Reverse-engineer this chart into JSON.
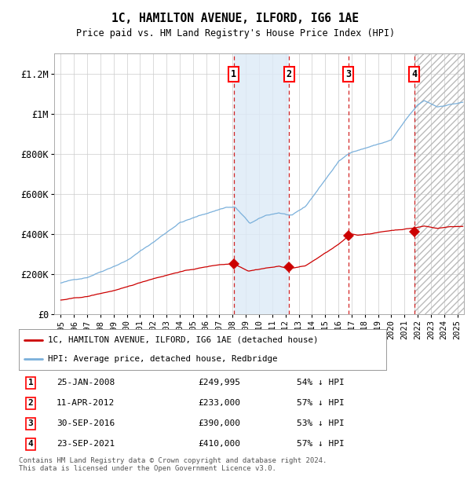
{
  "title": "1C, HAMILTON AVENUE, ILFORD, IG6 1AE",
  "subtitle": "Price paid vs. HM Land Registry's House Price Index (HPI)",
  "footnote": "Contains HM Land Registry data © Crown copyright and database right 2024.\nThis data is licensed under the Open Government Licence v3.0.",
  "legend_line1": "1C, HAMILTON AVENUE, ILFORD, IG6 1AE (detached house)",
  "legend_line2": "HPI: Average price, detached house, Redbridge",
  "transactions": [
    {
      "id": 1,
      "date_str": "25-JAN-2008",
      "price": 249995,
      "pct": "54% ↓ HPI",
      "year": 2008.07
    },
    {
      "id": 2,
      "date_str": "11-APR-2012",
      "price": 233000,
      "pct": "57% ↓ HPI",
      "year": 2012.28
    },
    {
      "id": 3,
      "date_str": "30-SEP-2016",
      "price": 390000,
      "pct": "53% ↓ HPI",
      "year": 2016.75
    },
    {
      "id": 4,
      "date_str": "23-SEP-2021",
      "price": 410000,
      "pct": "57% ↓ HPI",
      "year": 2021.73
    }
  ],
  "hpi_color": "#7ab0db",
  "price_color": "#cc0000",
  "marker_color": "#cc0000",
  "shade_color": "#ddeaf7",
  "vline_color": "#cc0000",
  "grid_color": "#cccccc",
  "bg_color": "#ffffff",
  "hatch_color": "#cccccc",
  "ylim": [
    0,
    1300000
  ],
  "xlim_start": 1994.5,
  "xlim_end": 2025.5,
  "yticks": [
    0,
    200000,
    400000,
    600000,
    800000,
    1000000,
    1200000
  ],
  "ytick_labels": [
    "£0",
    "£200K",
    "£400K",
    "£600K",
    "£800K",
    "£1M",
    "£1.2M"
  ],
  "xticks": [
    1995,
    1996,
    1997,
    1998,
    1999,
    2000,
    2001,
    2002,
    2003,
    2004,
    2005,
    2006,
    2007,
    2008,
    2009,
    2010,
    2011,
    2012,
    2013,
    2014,
    2015,
    2016,
    2017,
    2018,
    2019,
    2020,
    2021,
    2022,
    2023,
    2024,
    2025
  ]
}
